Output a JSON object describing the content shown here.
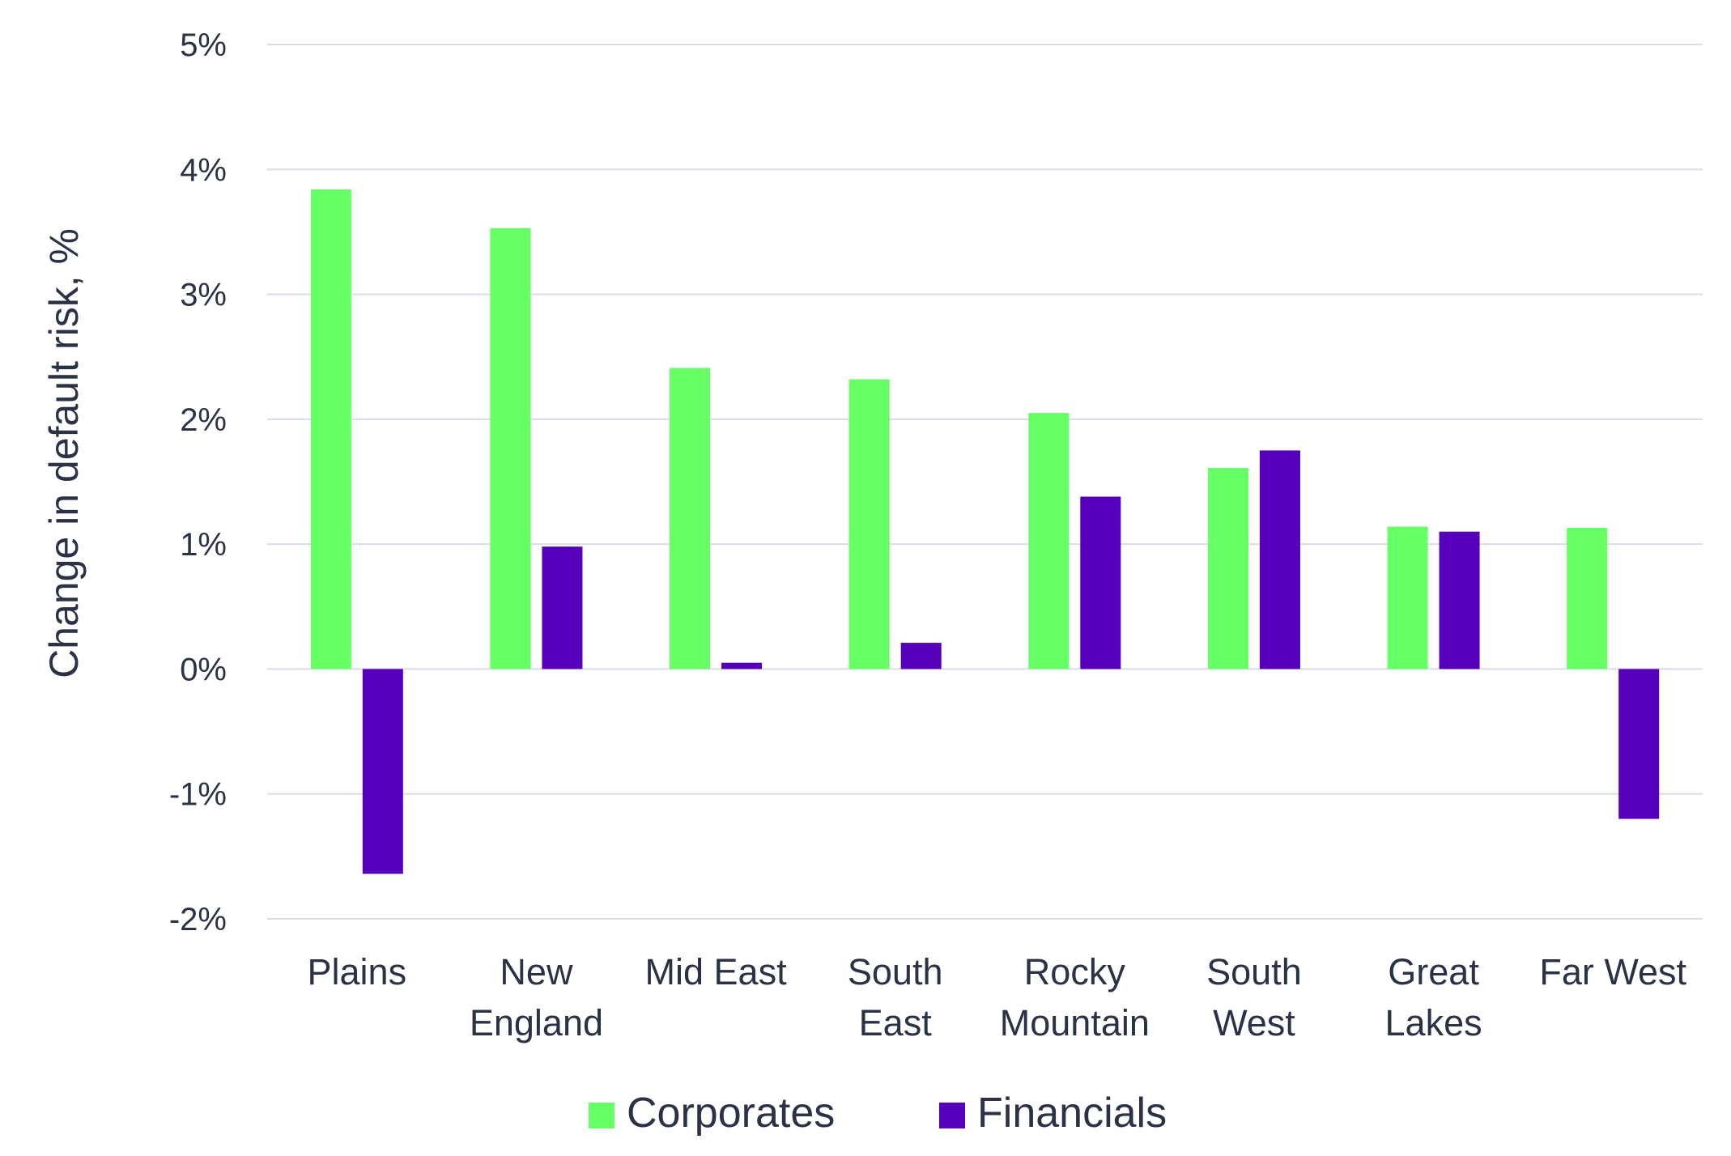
{
  "chart_data": {
    "type": "bar",
    "title": "",
    "xlabel": "",
    "ylabel": "Change in default risk, %",
    "ylim": [
      -2,
      5
    ],
    "yticks": [
      -2,
      -1,
      0,
      1,
      2,
      3,
      4,
      5
    ],
    "ytick_labels": [
      "-2%",
      "-1%",
      "0%",
      "1%",
      "2%",
      "3%",
      "4%",
      "5%"
    ],
    "grid": true,
    "legend_position": "bottom-center",
    "categories": [
      [
        "Plains"
      ],
      [
        "New",
        "England"
      ],
      [
        "Mid East"
      ],
      [
        "South",
        "East"
      ],
      [
        "Rocky",
        "Mountain"
      ],
      [
        "South",
        "West"
      ],
      [
        "Great",
        "Lakes"
      ],
      [
        "Far West"
      ]
    ],
    "series": [
      {
        "name": "Corporates",
        "color": "#66ff66",
        "values": [
          3.84,
          3.53,
          2.41,
          2.32,
          2.05,
          1.61,
          1.14,
          1.13
        ]
      },
      {
        "name": "Financials",
        "color": "#5600bb",
        "values": [
          -1.64,
          0.98,
          0.05,
          0.21,
          1.38,
          1.75,
          1.1,
          -1.2
        ]
      }
    ]
  }
}
